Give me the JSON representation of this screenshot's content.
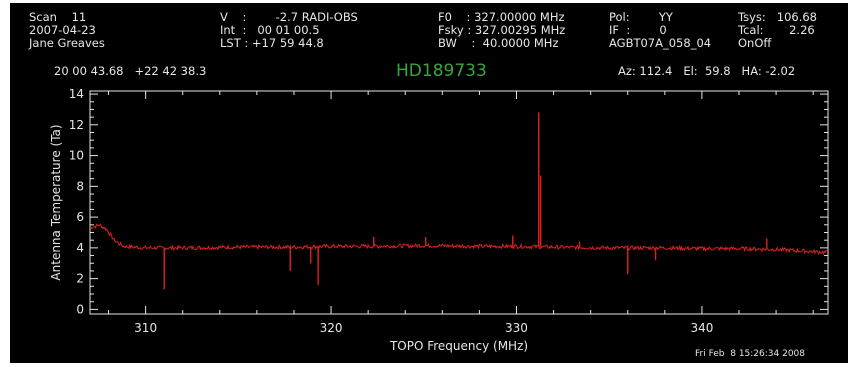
{
  "header": {
    "col1": [
      "Scan    11",
      "2007-04-23",
      "Jane Greaves"
    ],
    "col2": [
      "V    :        -2.7 RADI-OBS",
      "Int  :   00 01 00.5",
      "LST : +17 59 44.8"
    ],
    "col3": [
      "F0    : 327.00000 MHz",
      "Fsky : 327.00295 MHz",
      "BW    :  40.0000 MHz"
    ],
    "col4": [
      "Pol:        YY",
      "IF  :        0",
      "AGBT07A_058_04"
    ],
    "col5": [
      "Tsys:   106.68",
      "Tcal:       2.26",
      "OnOff"
    ],
    "coords": "20 00 43.68   +22 42 38.3",
    "source": "HD189733",
    "azelha": "Az: 112.4   El:  59.8   HA: -2.02"
  },
  "footer": {
    "timestamp": "Fri Feb  8 15:26:34 2008"
  },
  "colors": {
    "background": "#000000",
    "trace": "#e02020",
    "axes": "#e6e6e6",
    "source": "#3aa63a"
  },
  "chart_data": {
    "type": "line",
    "title": "HD189733",
    "xlabel": "TOPO Frequency (MHz)",
    "ylabel": "Antenna Temperature (Ta)",
    "xlim": [
      307.0,
      346.8
    ],
    "ylim": [
      -0.3,
      14.2
    ],
    "xticks": [
      310,
      320,
      330,
      340
    ],
    "yticks": [
      0,
      2,
      4,
      6,
      8,
      10,
      12,
      14
    ],
    "grid": false,
    "baseline": [
      [
        307.0,
        5.3
      ],
      [
        307.5,
        5.5
      ],
      [
        307.9,
        5.2
      ],
      [
        308.3,
        4.5
      ],
      [
        308.8,
        4.1
      ],
      [
        310,
        4.0
      ],
      [
        312,
        4.0
      ],
      [
        315,
        4.05
      ],
      [
        318,
        4.05
      ],
      [
        320,
        4.1
      ],
      [
        322,
        4.1
      ],
      [
        325,
        4.15
      ],
      [
        328,
        4.1
      ],
      [
        330,
        4.1
      ],
      [
        332,
        4.05
      ],
      [
        335,
        4.0
      ],
      [
        338,
        4.0
      ],
      [
        340,
        3.95
      ],
      [
        342,
        3.95
      ],
      [
        344,
        3.9
      ],
      [
        346.8,
        3.7
      ]
    ],
    "spikes": [
      {
        "x": 311.0,
        "y": 1.3
      },
      {
        "x": 317.8,
        "y": 2.5
      },
      {
        "x": 318.9,
        "y": 3.0
      },
      {
        "x": 319.3,
        "y": 1.6
      },
      {
        "x": 322.3,
        "y": 4.7
      },
      {
        "x": 325.1,
        "y": 4.7
      },
      {
        "x": 329.8,
        "y": 4.8
      },
      {
        "x": 331.2,
        "y": 12.8
      },
      {
        "x": 331.3,
        "y": 8.7
      },
      {
        "x": 333.4,
        "y": 4.4
      },
      {
        "x": 336.0,
        "y": 2.3
      },
      {
        "x": 337.5,
        "y": 3.2
      },
      {
        "x": 343.5,
        "y": 4.6
      }
    ]
  }
}
